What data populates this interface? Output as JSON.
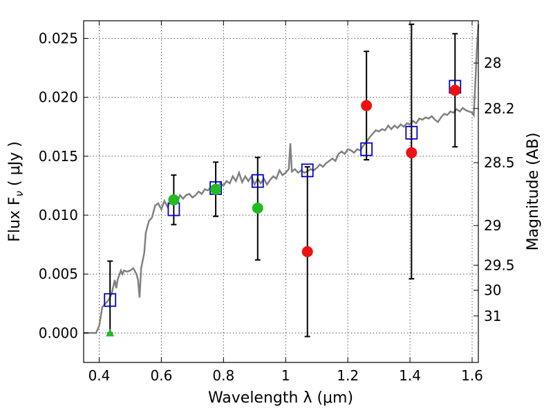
{
  "chart_data": {
    "type": "scatter",
    "xlabel": "Wavelength  λ (μm)",
    "ylabel": "Flux  F",
    "ylabel_sub": "ν",
    "ylabel_unit": "  ( μJy )",
    "ylabel_right": "Magnitude (AB)",
    "xlim": [
      0.35,
      1.62
    ],
    "ylim": [
      -0.0025,
      0.0265
    ],
    "grid": true,
    "x_ticks": [
      {
        "v": 0.4,
        "label": "0.4"
      },
      {
        "v": 0.6,
        "label": "0.6"
      },
      {
        "v": 0.8,
        "label": "0.8"
      },
      {
        "v": 1.0,
        "label": "1"
      },
      {
        "v": 1.2,
        "label": "1.2"
      },
      {
        "v": 1.4,
        "label": "1.4"
      },
      {
        "v": 1.6,
        "label": "1.6"
      }
    ],
    "y_ticks": [
      {
        "v": 0.0,
        "label": "0.000"
      },
      {
        "v": 0.005,
        "label": "0.005"
      },
      {
        "v": 0.01,
        "label": "0.010"
      },
      {
        "v": 0.015,
        "label": "0.015"
      },
      {
        "v": 0.02,
        "label": "0.020"
      },
      {
        "v": 0.025,
        "label": "0.025"
      }
    ],
    "right_ticks": [
      {
        "mag": 28,
        "label": "28"
      },
      {
        "mag": 28.2,
        "label": "28.2"
      },
      {
        "mag": 28.5,
        "label": "28.5"
      },
      {
        "mag": 29,
        "label": "29"
      },
      {
        "mag": 29.5,
        "label": "29.5"
      },
      {
        "mag": 30,
        "label": "30"
      },
      {
        "mag": 31,
        "label": "31"
      }
    ],
    "colors": {
      "model": "#808080",
      "model_points": "#0000cc",
      "green": "#22bb22",
      "red": "#ee1111",
      "errorbar": "#000000"
    },
    "model_spectrum": [
      [
        0.35,
        0.0
      ],
      [
        0.39,
        0.0
      ],
      [
        0.4,
        0.0006
      ],
      [
        0.41,
        0.0022
      ],
      [
        0.42,
        0.0025
      ],
      [
        0.43,
        0.0028
      ],
      [
        0.44,
        0.0033
      ],
      [
        0.45,
        0.0045
      ],
      [
        0.455,
        0.0038
      ],
      [
        0.46,
        0.0046
      ],
      [
        0.47,
        0.0053
      ],
      [
        0.475,
        0.005
      ],
      [
        0.48,
        0.0053
      ],
      [
        0.49,
        0.0052
      ],
      [
        0.5,
        0.0053
      ],
      [
        0.51,
        0.0055
      ],
      [
        0.52,
        0.005
      ],
      [
        0.525,
        0.0045
      ],
      [
        0.53,
        0.003
      ],
      [
        0.535,
        0.0055
      ],
      [
        0.545,
        0.0068
      ],
      [
        0.55,
        0.0085
      ],
      [
        0.56,
        0.0095
      ],
      [
        0.57,
        0.0098
      ],
      [
        0.58,
        0.0108
      ],
      [
        0.59,
        0.011
      ],
      [
        0.6,
        0.0105
      ],
      [
        0.61,
        0.0112
      ],
      [
        0.62,
        0.0107
      ],
      [
        0.63,
        0.0112
      ],
      [
        0.64,
        0.0114
      ],
      [
        0.65,
        0.011
      ],
      [
        0.66,
        0.0117
      ],
      [
        0.67,
        0.0114
      ],
      [
        0.68,
        0.0117
      ],
      [
        0.69,
        0.0118
      ],
      [
        0.7,
        0.0115
      ],
      [
        0.71,
        0.0117
      ],
      [
        0.72,
        0.012
      ],
      [
        0.73,
        0.0118
      ],
      [
        0.74,
        0.0122
      ],
      [
        0.75,
        0.0121
      ],
      [
        0.76,
        0.0124
      ],
      [
        0.77,
        0.0125
      ],
      [
        0.78,
        0.0123
      ],
      [
        0.79,
        0.0127
      ],
      [
        0.8,
        0.0125
      ],
      [
        0.81,
        0.0129
      ],
      [
        0.82,
        0.0127
      ],
      [
        0.83,
        0.0133
      ],
      [
        0.84,
        0.0129
      ],
      [
        0.85,
        0.0136
      ],
      [
        0.86,
        0.0128
      ],
      [
        0.87,
        0.0133
      ],
      [
        0.88,
        0.0129
      ],
      [
        0.89,
        0.0133
      ],
      [
        0.9,
        0.0126
      ],
      [
        0.91,
        0.0131
      ],
      [
        0.92,
        0.0127
      ],
      [
        0.93,
        0.0131
      ],
      [
        0.94,
        0.0126
      ],
      [
        0.95,
        0.013
      ],
      [
        0.96,
        0.0133
      ],
      [
        0.97,
        0.0131
      ],
      [
        0.98,
        0.0138
      ],
      [
        0.99,
        0.0134
      ],
      [
        1.0,
        0.0136
      ],
      [
        1.01,
        0.0139
      ],
      [
        1.015,
        0.0161
      ],
      [
        1.02,
        0.0137
      ],
      [
        1.03,
        0.0139
      ],
      [
        1.04,
        0.0136
      ],
      [
        1.05,
        0.0138
      ],
      [
        1.06,
        0.0136
      ],
      [
        1.07,
        0.0137
      ],
      [
        1.08,
        0.0139
      ],
      [
        1.09,
        0.0138
      ],
      [
        1.1,
        0.014
      ],
      [
        1.11,
        0.0143
      ],
      [
        1.12,
        0.0141
      ],
      [
        1.13,
        0.0144
      ],
      [
        1.14,
        0.0146
      ],
      [
        1.15,
        0.0148
      ],
      [
        1.16,
        0.0146
      ],
      [
        1.17,
        0.0152
      ],
      [
        1.18,
        0.0154
      ],
      [
        1.19,
        0.0152
      ],
      [
        1.2,
        0.0156
      ],
      [
        1.21,
        0.0155
      ],
      [
        1.22,
        0.0153
      ],
      [
        1.23,
        0.0156
      ],
      [
        1.24,
        0.0155
      ],
      [
        1.25,
        0.0159
      ],
      [
        1.26,
        0.0162
      ],
      [
        1.27,
        0.0166
      ],
      [
        1.28,
        0.0169
      ],
      [
        1.29,
        0.0172
      ],
      [
        1.3,
        0.0171
      ],
      [
        1.31,
        0.0173
      ],
      [
        1.32,
        0.0172
      ],
      [
        1.33,
        0.0176
      ],
      [
        1.34,
        0.0173
      ],
      [
        1.35,
        0.0176
      ],
      [
        1.36,
        0.0174
      ],
      [
        1.37,
        0.0177
      ],
      [
        1.38,
        0.0175
      ],
      [
        1.39,
        0.0178
      ],
      [
        1.4,
        0.0177
      ],
      [
        1.41,
        0.018
      ],
      [
        1.42,
        0.0178
      ],
      [
        1.43,
        0.0182
      ],
      [
        1.44,
        0.0181
      ],
      [
        1.45,
        0.0183
      ],
      [
        1.46,
        0.0182
      ],
      [
        1.47,
        0.0184
      ],
      [
        1.48,
        0.0181
      ],
      [
        1.49,
        0.0179
      ],
      [
        1.5,
        0.0183
      ],
      [
        1.51,
        0.0186
      ],
      [
        1.52,
        0.0185
      ],
      [
        1.53,
        0.0188
      ],
      [
        1.54,
        0.0187
      ],
      [
        1.55,
        0.019
      ],
      [
        1.56,
        0.0188
      ],
      [
        1.57,
        0.0191
      ],
      [
        1.58,
        0.0189
      ],
      [
        1.59,
        0.0188
      ],
      [
        1.6,
        0.0187
      ],
      [
        1.605,
        0.0185
      ],
      [
        1.61,
        0.021
      ],
      [
        1.615,
        0.024
      ],
      [
        1.62,
        0.0262
      ]
    ],
    "model_points": [
      {
        "x": 0.435,
        "y": 0.0028
      },
      {
        "x": 0.64,
        "y": 0.0105
      },
      {
        "x": 0.775,
        "y": 0.0123
      },
      {
        "x": 0.91,
        "y": 0.0129
      },
      {
        "x": 1.07,
        "y": 0.0138
      },
      {
        "x": 1.26,
        "y": 0.0156
      },
      {
        "x": 1.405,
        "y": 0.017
      },
      {
        "x": 1.545,
        "y": 0.0209
      }
    ],
    "observations": [
      {
        "x": 0.435,
        "y": 0.0,
        "yerr_low": 0.0,
        "yerr_high": 0.0061,
        "marker": "triangle",
        "color": "green"
      },
      {
        "x": 0.64,
        "y": 0.0113,
        "yerr_low": 0.0092,
        "yerr_high": 0.0134,
        "marker": "circle",
        "color": "green"
      },
      {
        "x": 0.775,
        "y": 0.0122,
        "yerr_low": 0.0099,
        "yerr_high": 0.0145,
        "marker": "circle",
        "color": "green"
      },
      {
        "x": 0.91,
        "y": 0.0106,
        "yerr_low": 0.0062,
        "yerr_high": 0.0149,
        "marker": "circle",
        "color": "green"
      },
      {
        "x": 1.07,
        "y": 0.0069,
        "yerr_low": -0.0003,
        "yerr_high": 0.0141,
        "marker": "circle",
        "color": "red"
      },
      {
        "x": 1.26,
        "y": 0.0193,
        "yerr_low": 0.0147,
        "yerr_high": 0.0239,
        "marker": "circle",
        "color": "red"
      },
      {
        "x": 1.405,
        "y": 0.0153,
        "yerr_low": 0.0046,
        "yerr_high": 0.0262,
        "marker": "circle",
        "color": "red"
      },
      {
        "x": 1.545,
        "y": 0.0206,
        "yerr_low": 0.0158,
        "yerr_high": 0.0254,
        "marker": "circle",
        "color": "red"
      }
    ]
  }
}
